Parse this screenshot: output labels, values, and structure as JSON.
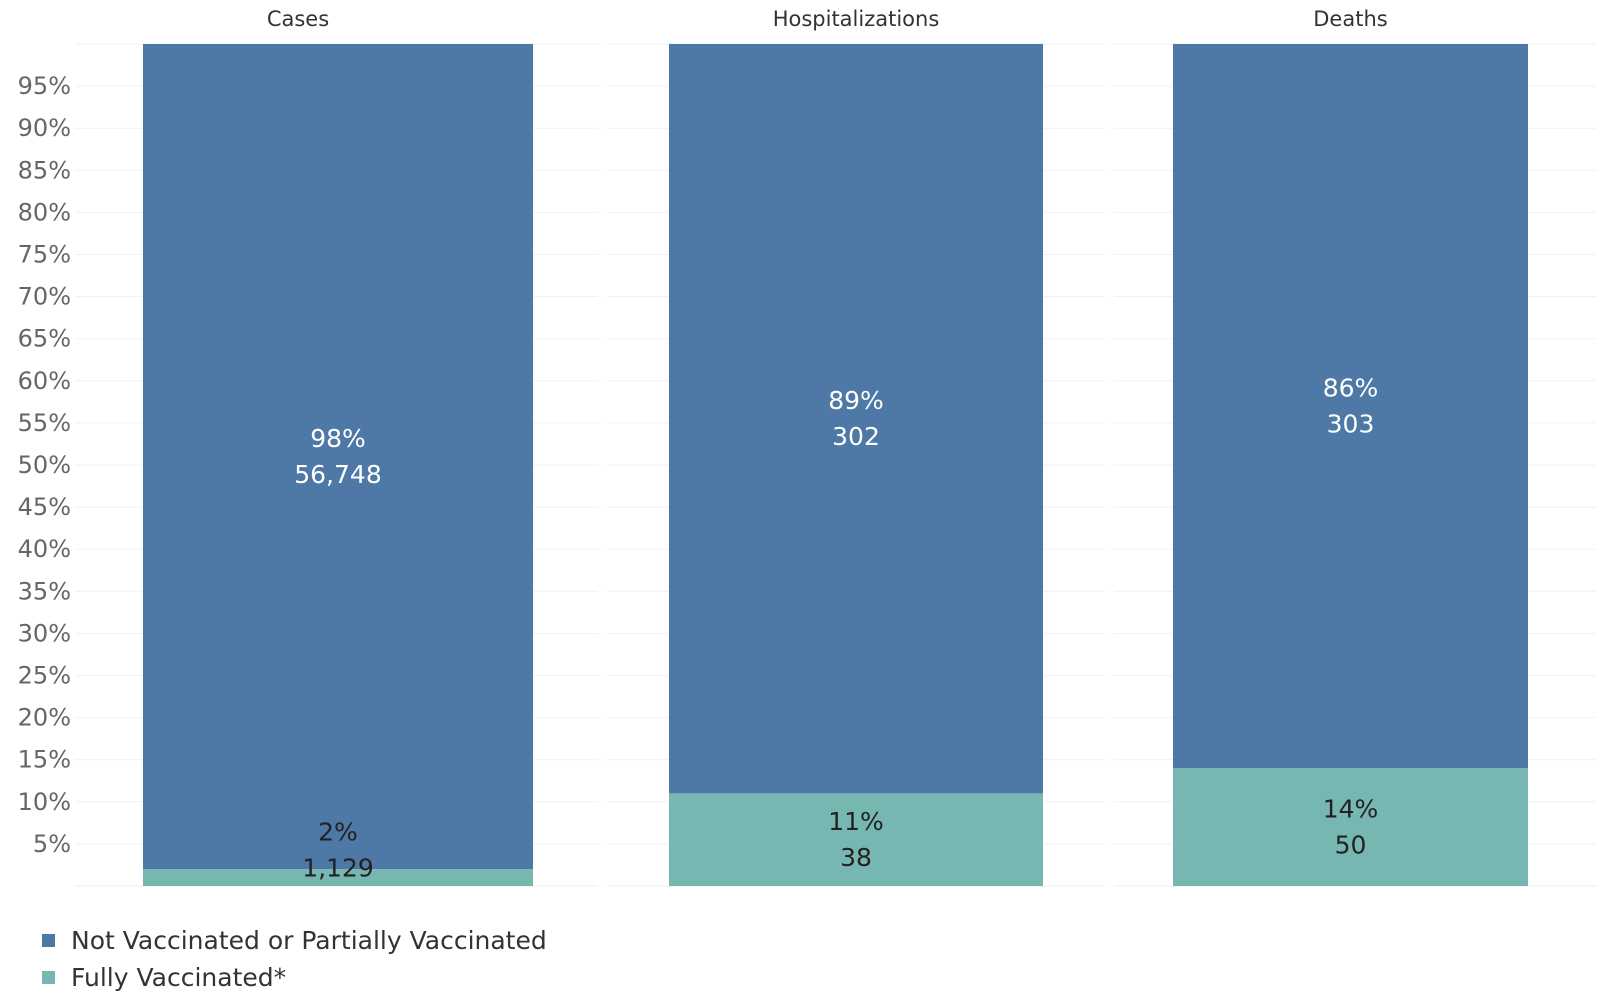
{
  "chart_data": {
    "type": "bar",
    "stacked": true,
    "percent_scale": true,
    "categories": [
      "Cases",
      "Hospitalizations",
      "Deaths"
    ],
    "series": [
      {
        "name": "Not Vaccinated or Partially Vaccinated",
        "color": "#4e79a7",
        "label_color": "#ffffff",
        "percent": [
          98,
          89,
          86
        ],
        "percent_labels": [
          "98%",
          "89%",
          "86%"
        ],
        "count_labels": [
          "56,748",
          "302",
          "303"
        ]
      },
      {
        "name": "Fully Vaccinated*",
        "color": "#76b7b2",
        "label_color": "#222222",
        "percent": [
          2,
          11,
          14
        ],
        "percent_labels": [
          "2%",
          "11%",
          "14%"
        ],
        "count_labels": [
          "1,129",
          "38",
          "50"
        ]
      }
    ],
    "y_ticks": [
      "5%",
      "10%",
      "15%",
      "20%",
      "25%",
      "30%",
      "35%",
      "40%",
      "45%",
      "50%",
      "55%",
      "60%",
      "65%",
      "70%",
      "75%",
      "80%",
      "85%",
      "90%",
      "95%"
    ],
    "ylim": [
      0,
      100
    ],
    "grid": true,
    "legend_position": "bottom-left"
  }
}
